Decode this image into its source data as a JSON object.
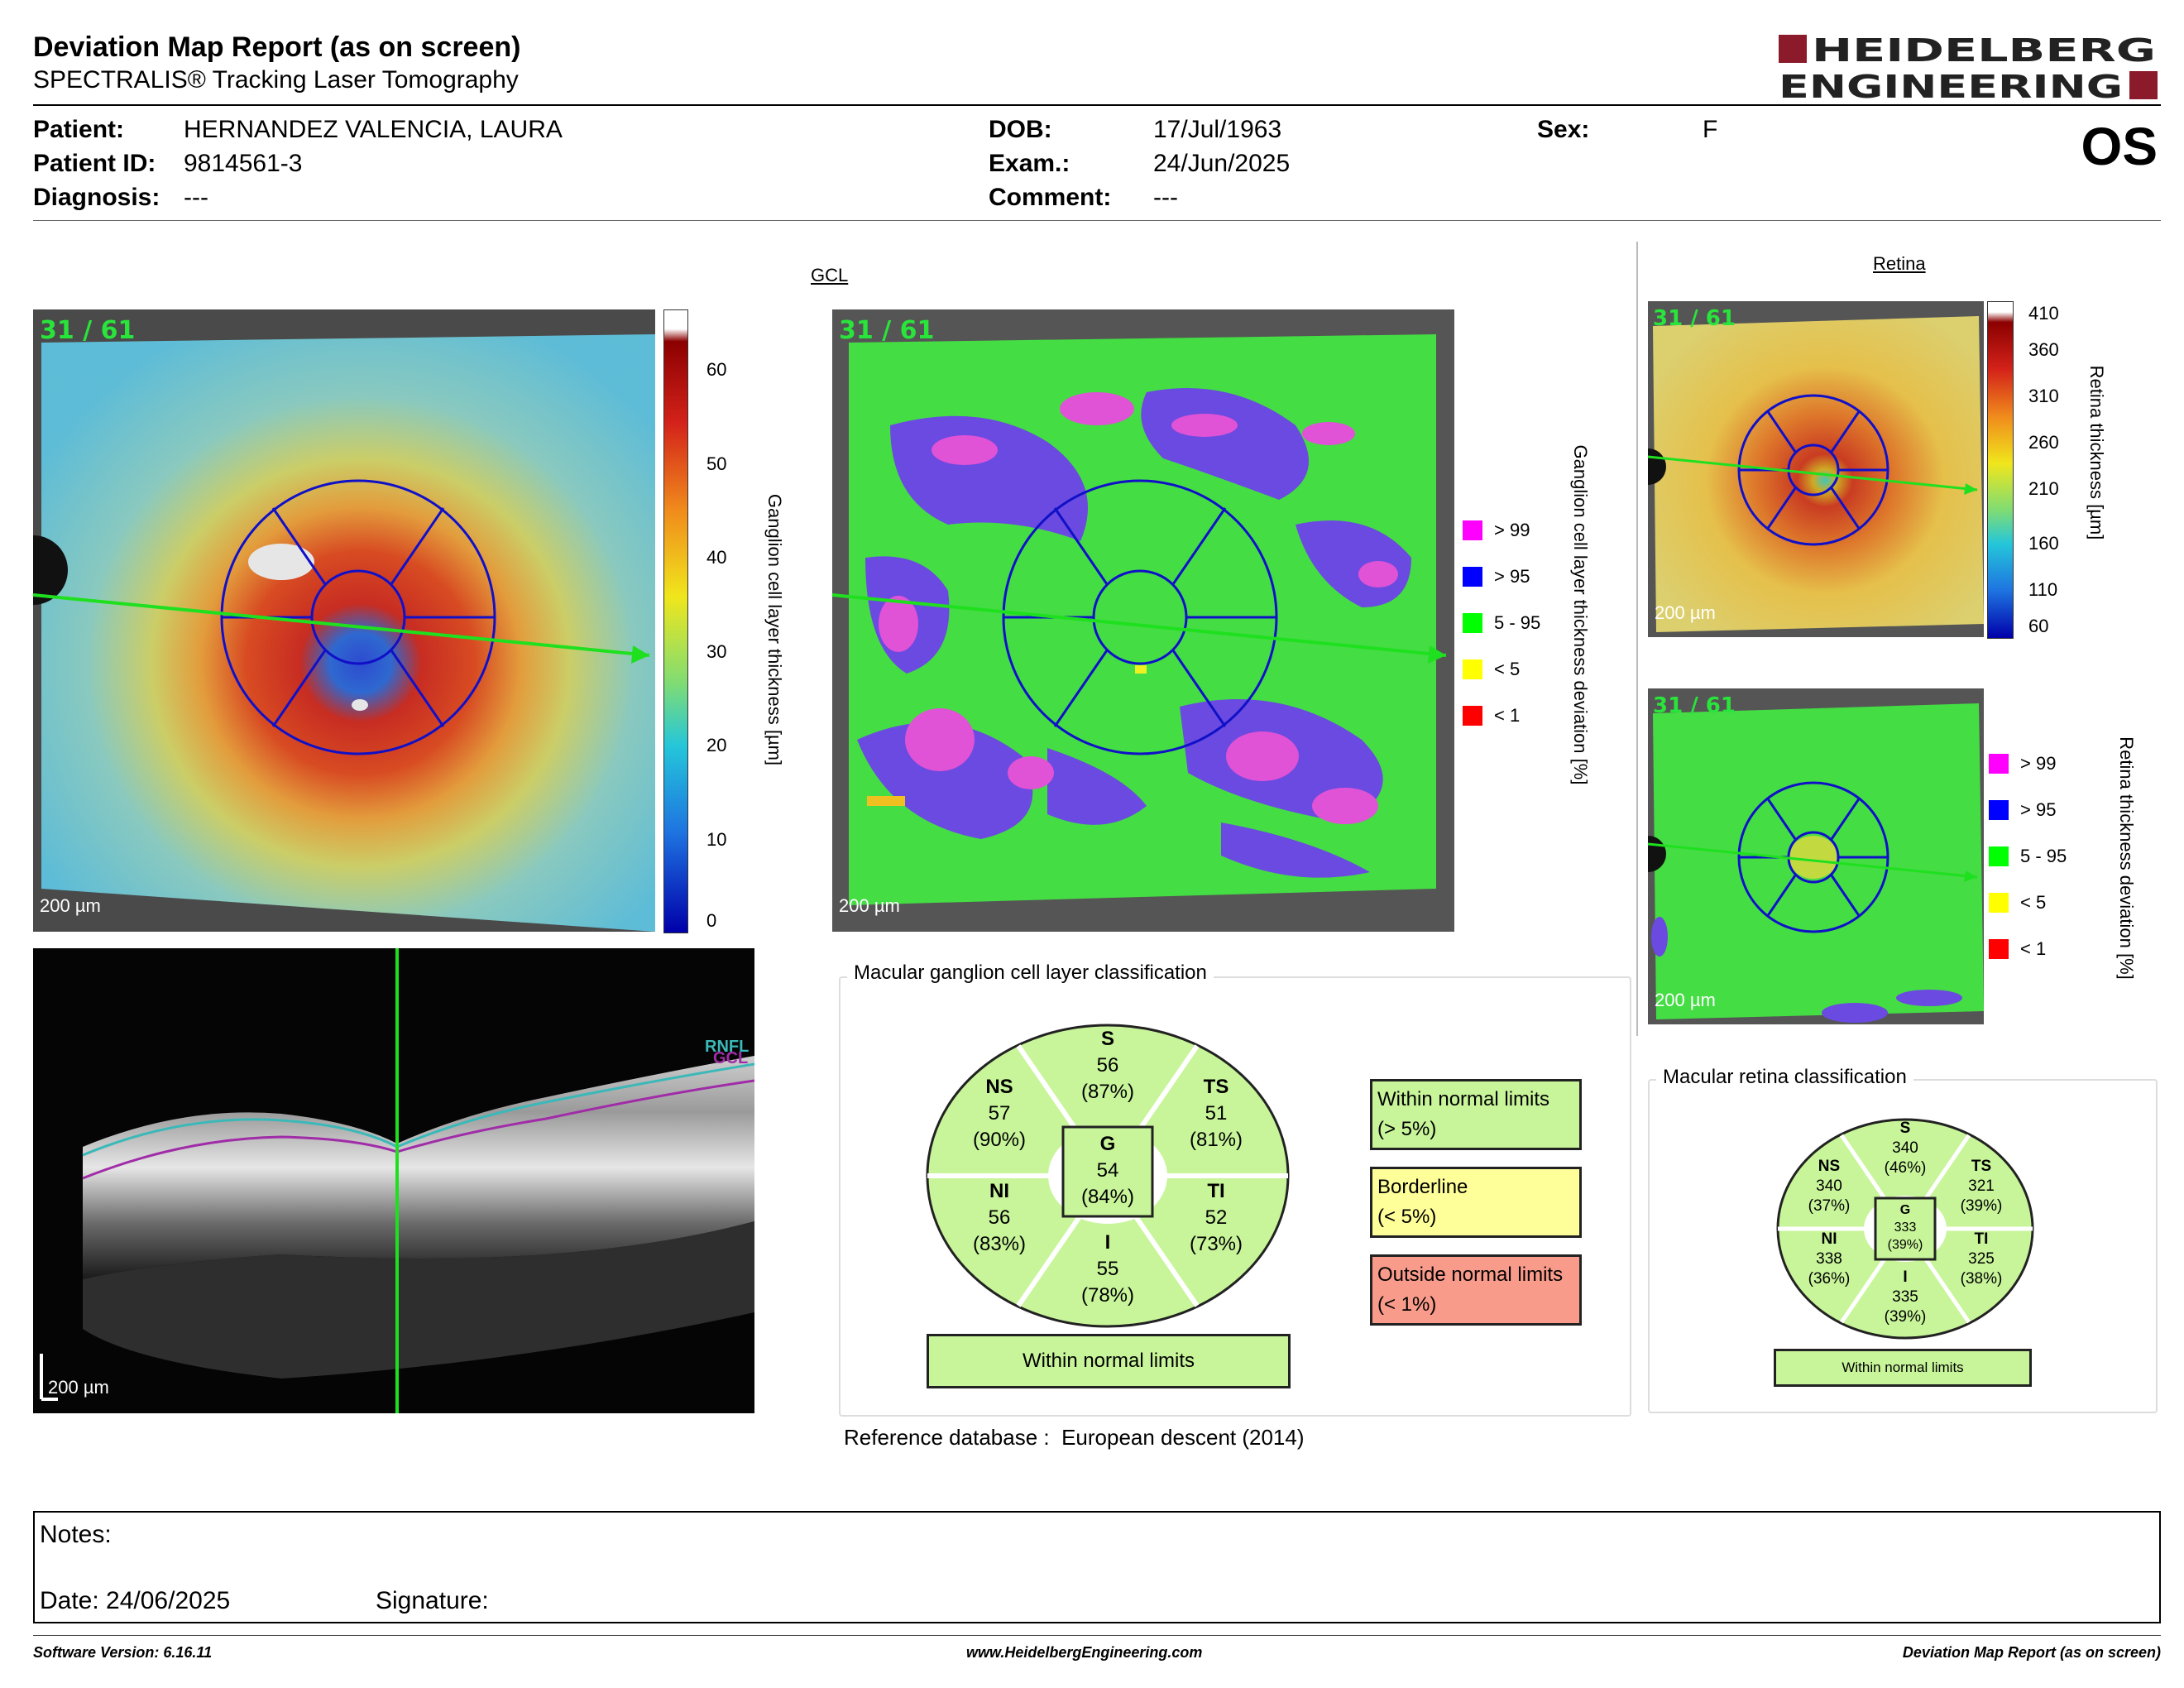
{
  "header": {
    "title": "Deviation Map Report (as on screen)",
    "subtitle": "SPECTRALIS® Tracking Laser Tomography",
    "logo_line1": "HEIDELBERG",
    "logo_line2": "ENGINEERING"
  },
  "patient": {
    "patient_label": "Patient:",
    "patient_value": "HERNANDEZ VALENCIA, LAURA",
    "id_label": "Patient ID:",
    "id_value": "9814561-3",
    "diagnosis_label": "Diagnosis:",
    "diagnosis_value": "---",
    "dob_label": "DOB:",
    "dob_value": "17/Jul/1963",
    "exam_label": "Exam.:",
    "exam_value": "24/Jun/2025",
    "comment_label": "Comment:",
    "comment_value": "---",
    "sex_label": "Sex:",
    "sex_value": "F",
    "eye": "OS"
  },
  "gcl": {
    "section_title": "GCL",
    "frame_count": "31 / 61",
    "scale": "200 µm",
    "thickness_axis_label": "Ganglion cell layer thickness [µm]",
    "thickness_ticks": [
      "60",
      "50",
      "40",
      "30",
      "20",
      "10",
      "0"
    ],
    "deviation_axis_label": "Ganglion cell layer thickness deviation [%]",
    "deviation_legend": [
      {
        "label": "> 99",
        "color": "#ff00ff"
      },
      {
        "label": "> 95",
        "color": "#0000ff"
      },
      {
        "label": "5 - 95",
        "color": "#00ff00"
      },
      {
        "label": "< 5",
        "color": "#ffff00"
      },
      {
        "label": "< 1",
        "color": "#ff0000"
      }
    ],
    "bscan_labels": [
      "RNFL",
      "GCL"
    ],
    "classification": {
      "title": "Macular ganglion cell layer classification",
      "sectors": {
        "S": {
          "name": "S",
          "value": "56",
          "pct": "(87%)"
        },
        "NS": {
          "name": "NS",
          "value": "57",
          "pct": "(90%)"
        },
        "TS": {
          "name": "TS",
          "value": "51",
          "pct": "(81%)"
        },
        "NI": {
          "name": "NI",
          "value": "56",
          "pct": "(83%)"
        },
        "TI": {
          "name": "TI",
          "value": "52",
          "pct": "(73%)"
        },
        "I": {
          "name": "I",
          "value": "55",
          "pct": "(78%)"
        },
        "G": {
          "name": "G",
          "value": "54",
          "pct": "(84%)"
        }
      },
      "result": "Within normal limits",
      "key": [
        {
          "line1": "Within normal limits",
          "line2": "(> 5%)",
          "color": "#c8f59a"
        },
        {
          "line1": "Borderline",
          "line2": "(< 5%)",
          "color": "#ffff99"
        },
        {
          "line1": "Outside normal limits",
          "line2": "(< 1%)",
          "color": "#f99b8b"
        }
      ]
    },
    "reference_label": "Reference database :",
    "reference_value": "European descent (2014)"
  },
  "retina": {
    "section_title": "Retina",
    "frame_count": "31 / 61",
    "scale": "200 µm",
    "thickness_axis_label": "Retina thickness [µm]",
    "thickness_ticks": [
      "410",
      "360",
      "310",
      "260",
      "210",
      "160",
      "110",
      "60"
    ],
    "deviation_axis_label": "Retina thickness deviation [%]",
    "deviation_legend": [
      {
        "label": "> 99",
        "color": "#ff00ff"
      },
      {
        "label": "> 95",
        "color": "#0000ff"
      },
      {
        "label": "5 - 95",
        "color": "#00ff00"
      },
      {
        "label": "< 5",
        "color": "#ffff00"
      },
      {
        "label": "< 1",
        "color": "#ff0000"
      }
    ],
    "classification": {
      "title": "Macular retina classification",
      "sectors": {
        "S": {
          "name": "S",
          "value": "340",
          "pct": "(46%)"
        },
        "NS": {
          "name": "NS",
          "value": "340",
          "pct": "(37%)"
        },
        "TS": {
          "name": "TS",
          "value": "321",
          "pct": "(39%)"
        },
        "NI": {
          "name": "NI",
          "value": "338",
          "pct": "(36%)"
        },
        "TI": {
          "name": "TI",
          "value": "325",
          "pct": "(38%)"
        },
        "I": {
          "name": "I",
          "value": "335",
          "pct": "(39%)"
        },
        "G": {
          "name": "G",
          "value": "333",
          "pct": "(39%)"
        }
      },
      "result": "Within normal limits"
    }
  },
  "notes": {
    "notes_label": "Notes:",
    "date_label": "Date: 24/06/2025",
    "signature_label": "Signature:"
  },
  "footer": {
    "left": "Software Version: 6.16.11",
    "center": "www.HeidelbergEngineering.com",
    "right": "Deviation Map Report (as on screen)"
  }
}
